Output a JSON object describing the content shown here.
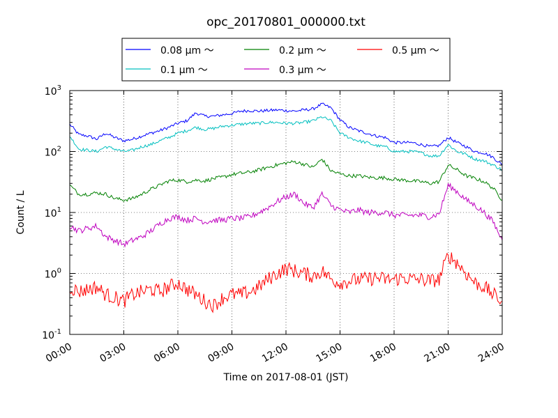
{
  "chart_data": {
    "type": "line",
    "title": "opc_20170801_000000.txt",
    "xlabel": "Time on 2017-08-01 (JST)",
    "ylabel": "Count / L",
    "xlim": [
      "00:00",
      "24:00"
    ],
    "ylim": [
      0.1,
      1000
    ],
    "y_scale": "log",
    "grid": true,
    "legend_location": "top-center",
    "x_ticks": [
      "00:00",
      "03:00",
      "06:00",
      "09:00",
      "12:00",
      "15:00",
      "18:00",
      "21:00",
      "24:00"
    ],
    "y_ticks": [
      {
        "base": "10",
        "exp": "-1"
      },
      {
        "base": "10",
        "exp": "0"
      },
      {
        "base": "10",
        "exp": "1"
      },
      {
        "base": "10",
        "exp": "2"
      },
      {
        "base": "10",
        "exp": "3"
      }
    ],
    "series": [
      {
        "name": "0.08 μm ～",
        "color": "#0000ff",
        "x": [
          "00:00",
          "00:30",
          "01:00",
          "01:30",
          "02:00",
          "02:30",
          "03:00",
          "03:30",
          "04:00",
          "04:30",
          "05:00",
          "05:30",
          "06:00",
          "06:30",
          "07:00",
          "07:30",
          "08:00",
          "08:30",
          "09:00",
          "09:30",
          "10:00",
          "10:30",
          "11:00",
          "11:30",
          "12:00",
          "12:30",
          "13:00",
          "13:30",
          "14:00",
          "14:30",
          "15:00",
          "15:30",
          "16:00",
          "16:30",
          "17:00",
          "17:30",
          "18:00",
          "18:30",
          "19:00",
          "19:30",
          "20:00",
          "20:30",
          "21:00",
          "21:30",
          "22:00",
          "22:30",
          "23:00",
          "23:30",
          "24:00"
        ],
        "y": [
          280,
          190,
          180,
          160,
          200,
          170,
          150,
          160,
          180,
          200,
          220,
          250,
          290,
          320,
          430,
          380,
          380,
          400,
          420,
          460,
          470,
          460,
          470,
          480,
          470,
          460,
          480,
          500,
          600,
          520,
          330,
          250,
          220,
          200,
          180,
          170,
          140,
          140,
          140,
          130,
          120,
          125,
          170,
          140,
          120,
          100,
          95,
          80,
          60
        ]
      },
      {
        "name": "0.1 μm ～",
        "color": "#00bfbf",
        "x": [
          "00:00",
          "00:30",
          "01:00",
          "01:30",
          "02:00",
          "02:30",
          "03:00",
          "03:30",
          "04:00",
          "04:30",
          "05:00",
          "05:30",
          "06:00",
          "06:30",
          "07:00",
          "07:30",
          "08:00",
          "08:30",
          "09:00",
          "09:30",
          "10:00",
          "10:30",
          "11:00",
          "11:30",
          "12:00",
          "12:30",
          "13:00",
          "13:30",
          "14:00",
          "14:30",
          "15:00",
          "15:30",
          "16:00",
          "16:30",
          "17:00",
          "17:30",
          "18:00",
          "18:30",
          "19:00",
          "19:30",
          "20:00",
          "20:30",
          "21:00",
          "21:30",
          "22:00",
          "22:30",
          "23:00",
          "23:30",
          "24:00"
        ],
        "y": [
          180,
          110,
          105,
          100,
          120,
          110,
          100,
          105,
          120,
          130,
          150,
          170,
          200,
          220,
          250,
          230,
          240,
          260,
          270,
          280,
          290,
          290,
          300,
          300,
          290,
          290,
          300,
          320,
          370,
          320,
          200,
          170,
          150,
          140,
          125,
          120,
          100,
          100,
          100,
          95,
          85,
          85,
          130,
          100,
          90,
          75,
          70,
          60,
          50
        ]
      },
      {
        "name": "0.2 μm ～",
        "color": "#008000",
        "x": [
          "00:00",
          "00:30",
          "01:00",
          "01:30",
          "02:00",
          "02:30",
          "03:00",
          "03:30",
          "04:00",
          "04:30",
          "05:00",
          "05:30",
          "06:00",
          "06:30",
          "07:00",
          "07:30",
          "08:00",
          "08:30",
          "09:00",
          "09:30",
          "10:00",
          "10:30",
          "11:00",
          "11:30",
          "12:00",
          "12:30",
          "13:00",
          "13:30",
          "14:00",
          "14:30",
          "15:00",
          "15:30",
          "16:00",
          "16:30",
          "17:00",
          "17:30",
          "18:00",
          "18:30",
          "19:00",
          "19:30",
          "20:00",
          "20:30",
          "21:00",
          "21:30",
          "22:00",
          "22:30",
          "23:00",
          "23:30",
          "24:00"
        ],
        "y": [
          28,
          20,
          20,
          21,
          20,
          17,
          16,
          17,
          20,
          24,
          28,
          33,
          34,
          32,
          34,
          33,
          36,
          38,
          42,
          44,
          46,
          50,
          55,
          60,
          65,
          68,
          62,
          55,
          75,
          48,
          43,
          40,
          40,
          38,
          37,
          37,
          35,
          34,
          33,
          32,
          30,
          32,
          60,
          50,
          40,
          36,
          32,
          25,
          16
        ]
      },
      {
        "name": "0.3 μm ～",
        "color": "#bf00bf",
        "x": [
          "00:00",
          "00:30",
          "01:00",
          "01:30",
          "02:00",
          "02:30",
          "03:00",
          "03:30",
          "04:00",
          "04:30",
          "05:00",
          "05:30",
          "06:00",
          "06:30",
          "07:00",
          "07:30",
          "08:00",
          "08:30",
          "09:00",
          "09:30",
          "10:00",
          "10:30",
          "11:00",
          "11:30",
          "12:00",
          "12:30",
          "13:00",
          "13:30",
          "14:00",
          "14:30",
          "15:00",
          "15:30",
          "16:00",
          "16:30",
          "17:00",
          "17:30",
          "18:00",
          "18:30",
          "19:00",
          "19:30",
          "20:00",
          "20:30",
          "21:00",
          "21:30",
          "22:00",
          "22:30",
          "23:00",
          "23:30",
          "24:00"
        ],
        "y": [
          6,
          5,
          5.5,
          6,
          4,
          3.5,
          3,
          3.5,
          4,
          5,
          6.5,
          8,
          8.5,
          7.5,
          8,
          7,
          7.5,
          7.5,
          8,
          8,
          8.5,
          10,
          12,
          15,
          18,
          20,
          14,
          12,
          20,
          13,
          11,
          10,
          11,
          10,
          10,
          10,
          9,
          9,
          9,
          9,
          8.5,
          9.5,
          28,
          22,
          16,
          13,
          10,
          7,
          3.5
        ]
      },
      {
        "name": "0.5 μm ～",
        "color": "#ff0000",
        "x": [
          "00:00",
          "00:30",
          "01:00",
          "01:30",
          "02:00",
          "02:30",
          "03:00",
          "03:30",
          "04:00",
          "04:30",
          "05:00",
          "05:30",
          "06:00",
          "06:30",
          "07:00",
          "07:30",
          "08:00",
          "08:30",
          "09:00",
          "09:30",
          "10:00",
          "10:30",
          "11:00",
          "11:30",
          "12:00",
          "12:30",
          "13:00",
          "13:30",
          "14:00",
          "14:30",
          "15:00",
          "15:30",
          "16:00",
          "16:30",
          "17:00",
          "17:30",
          "18:00",
          "18:30",
          "19:00",
          "19:30",
          "20:00",
          "20:30",
          "21:00",
          "21:30",
          "22:00",
          "22:30",
          "23:00",
          "23:30",
          "24:00"
        ],
        "y": [
          0.6,
          0.5,
          0.55,
          0.6,
          0.45,
          0.4,
          0.35,
          0.45,
          0.5,
          0.55,
          0.5,
          0.6,
          0.7,
          0.55,
          0.45,
          0.35,
          0.3,
          0.4,
          0.45,
          0.45,
          0.5,
          0.6,
          0.8,
          1.0,
          1.2,
          1.1,
          1.0,
          0.9,
          1.1,
          0.8,
          0.7,
          0.75,
          0.8,
          0.8,
          0.85,
          0.8,
          0.8,
          0.85,
          0.8,
          0.8,
          0.75,
          0.8,
          2.0,
          1.5,
          1.0,
          0.7,
          0.6,
          0.45,
          0.35
        ]
      }
    ]
  }
}
